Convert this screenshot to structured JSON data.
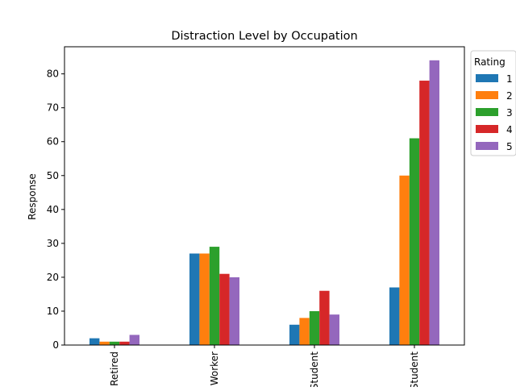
{
  "chart_data": {
    "type": "bar",
    "title": "Distraction Level by Occupation",
    "xlabel": "",
    "ylabel": "Response",
    "categories": [
      "Retired",
      "Worker",
      "Student",
      "Student"
    ],
    "ylim": [
      0,
      88
    ],
    "yticks": [
      0,
      10,
      20,
      30,
      40,
      50,
      60,
      70,
      80
    ],
    "grid": false,
    "legend": {
      "title": "Rating",
      "placement": "outside-top-right"
    },
    "series": [
      {
        "name": "1",
        "color": "#1f77b4",
        "values": [
          2,
          27,
          6,
          17
        ]
      },
      {
        "name": "2",
        "color": "#ff7f0e",
        "values": [
          1,
          27,
          8,
          50
        ]
      },
      {
        "name": "3",
        "color": "#2ca02c",
        "values": [
          1,
          29,
          10,
          61
        ]
      },
      {
        "name": "4",
        "color": "#d62728",
        "values": [
          1,
          21,
          16,
          78
        ]
      },
      {
        "name": "5",
        "color": "#9467bd",
        "values": [
          3,
          20,
          9,
          84
        ]
      }
    ]
  }
}
